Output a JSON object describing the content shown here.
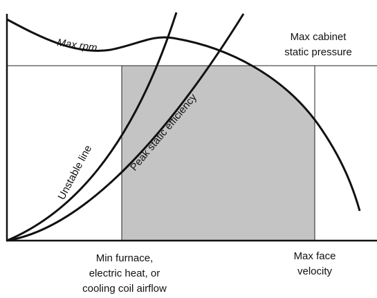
{
  "curves": {
    "max_rpm": "Max rpm",
    "unstable_line": "Unstable line",
    "peak_efficiency": "Peak static efficiency"
  },
  "labels": {
    "max_pressure": [
      "Max cabinet",
      "static pressure"
    ],
    "min_airflow": [
      "Min furnace,",
      "electric heat, or",
      "cooling coil airflow"
    ],
    "max_velocity": [
      "Max face",
      "velocity"
    ]
  }
}
